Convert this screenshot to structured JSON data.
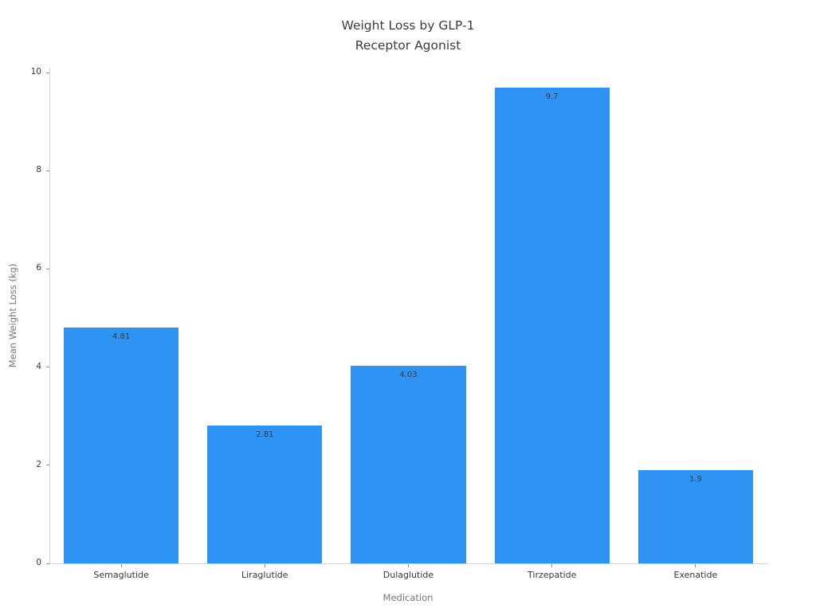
{
  "chart_data": {
    "type": "bar",
    "title": "Weight Loss by GLP-1\nReceptor Agonist",
    "xlabel": "Medication",
    "ylabel": "Mean Weight Loss (kg)",
    "categories": [
      "Semaglutide",
      "Liraglutide",
      "Dulaglutide",
      "Tirzepatide",
      "Exenatide"
    ],
    "values": [
      4.81,
      2.81,
      4.03,
      9.7,
      1.9
    ],
    "value_labels": [
      "4.81",
      "2.81",
      "4.03",
      "9.7",
      "1.9"
    ],
    "yticks": [
      0,
      2,
      4,
      6,
      8,
      10
    ],
    "ylim": [
      0,
      10.1
    ],
    "bar_color": "#2E93F2",
    "grid": "off",
    "legend": "none"
  }
}
